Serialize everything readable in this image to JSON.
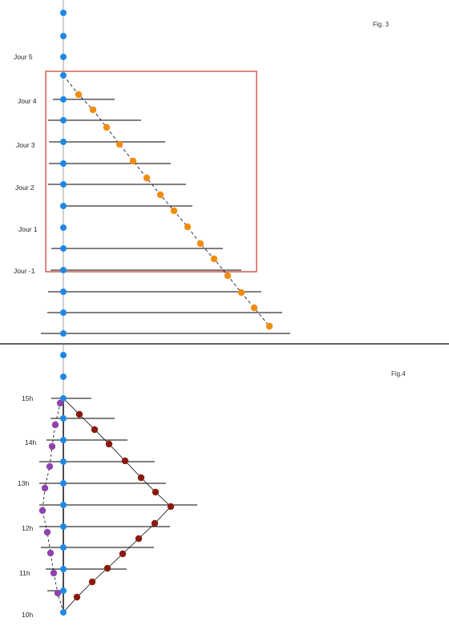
{
  "figures": [
    {
      "caption": "Fig. 3",
      "axis_labels": [
        "Jour 5",
        "Jour 4",
        "Jour 3",
        "Jour 2",
        "Jour 1",
        "Jour -1"
      ],
      "colors": {
        "axis_dots": "#1e88e5",
        "diagonal_dots": "#f28c12",
        "frame": "#c0392b",
        "lines": "#000000"
      }
    },
    {
      "caption": "Fig.4",
      "axis_labels": [
        "15h",
        "14h",
        "13h",
        "12h",
        "11h",
        "10h"
      ],
      "colors": {
        "axis_dots": "#1e88e5",
        "right_curve_dots": "#8b1a0e",
        "left_curve_dots": "#8e44ad",
        "lines": "#000000"
      }
    }
  ]
}
